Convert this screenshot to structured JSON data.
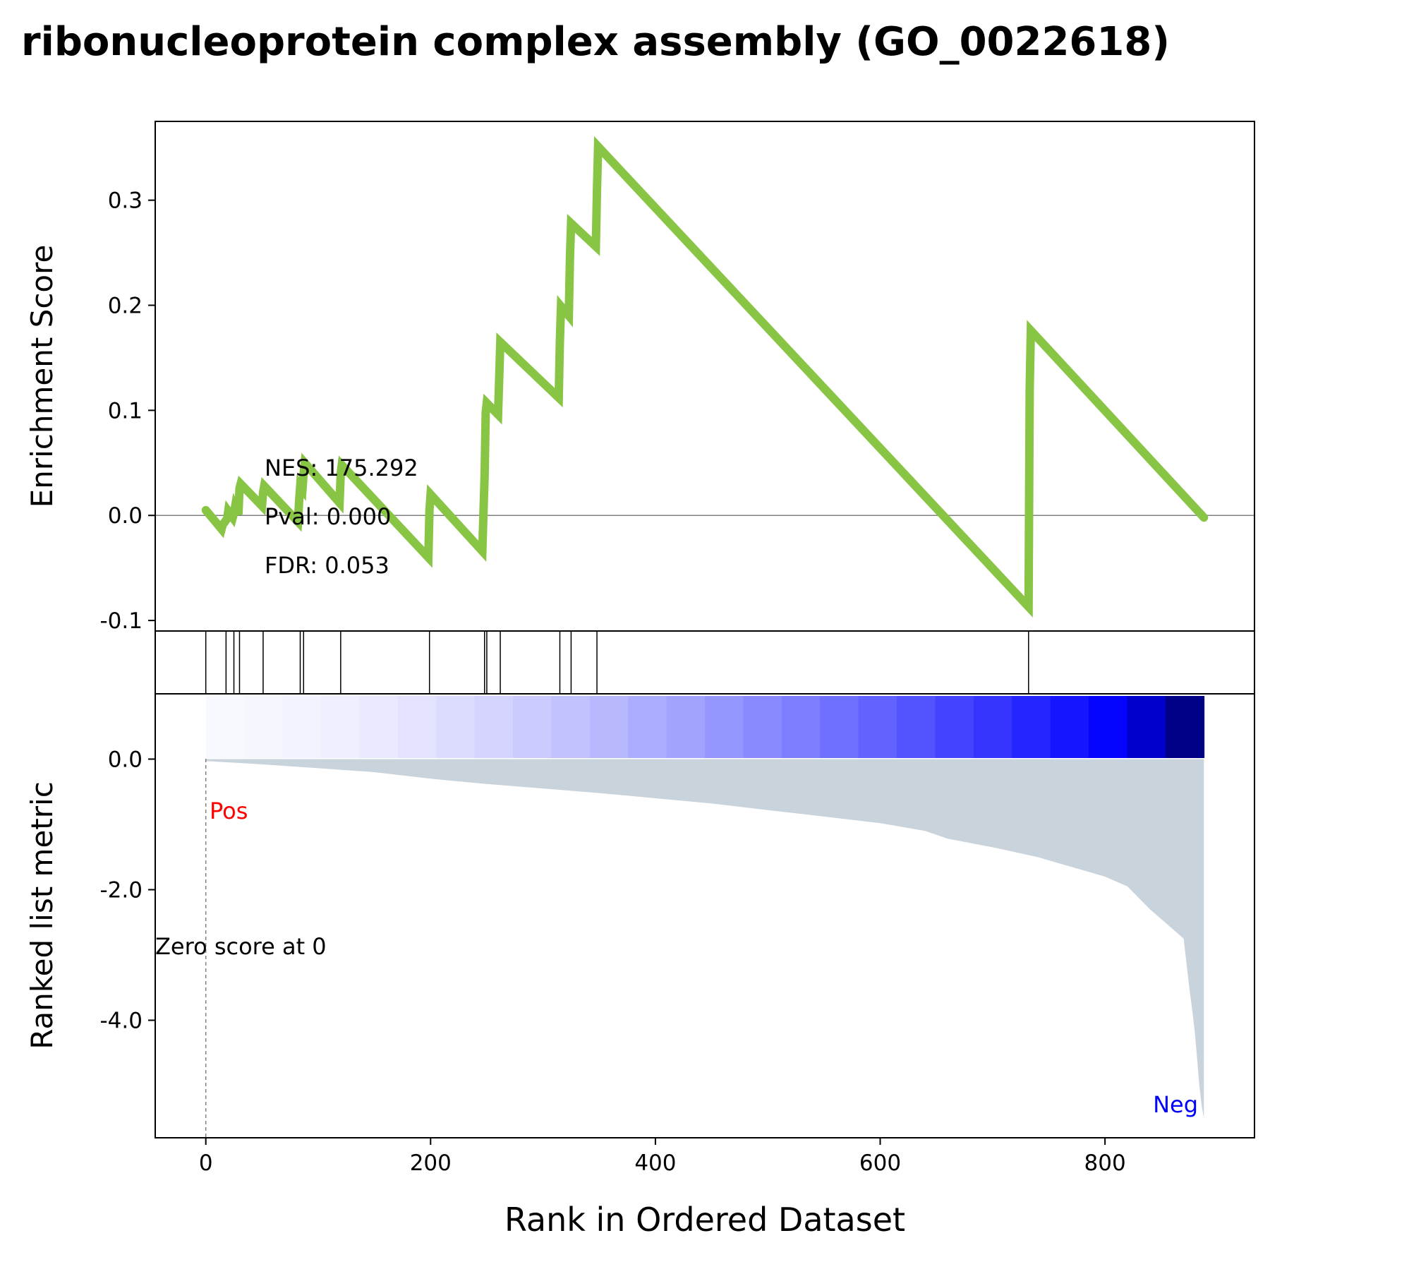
{
  "title": "ribonucleoprotein complex assembly (GO_0022618)",
  "colors": {
    "es_line": "#88c544",
    "metric_fill": "#c9d3dc",
    "pos_label": "#ff0000",
    "neg_label": "#0000ff",
    "zero_line": "#808080",
    "hit_line": "#000000"
  },
  "chart_data": [
    {
      "type": "line",
      "panel": "enrichment",
      "title": "ribonucleoprotein complex assembly (GO_0022618)",
      "ylabel": "Enrichment Score",
      "xlabel": "",
      "xlim": [
        -45,
        933
      ],
      "ylim": [
        -0.11,
        0.375
      ],
      "yticks": [
        "0.3",
        "0.2",
        "0.1",
        "0.0",
        "-0.1"
      ],
      "ytick_values": [
        0.3,
        0.2,
        0.1,
        0.0,
        -0.1
      ],
      "series": [
        {
          "x": [
            0,
            14,
            15,
            19,
            20,
            24,
            25,
            26,
            29,
            30,
            31,
            50,
            51,
            52,
            82,
            83,
            84,
            86,
            87,
            88,
            119,
            120,
            121,
            198,
            199,
            200,
            246,
            247,
            248,
            249,
            250,
            260,
            261,
            262,
            314,
            315,
            316,
            323,
            324,
            325,
            347,
            348,
            349,
            732,
            733,
            734,
            888
          ],
          "y": [
            0.005,
            -0.013,
            -0.009,
            -0.003,
            0.004,
            -0.002,
            0.002,
            0.008,
            0.001,
            0.026,
            0.03,
            0.009,
            0.022,
            0.028,
            -0.006,
            0.013,
            0.028,
            0.025,
            0.04,
            0.05,
            0.012,
            0.04,
            0.048,
            -0.04,
            0.005,
            0.02,
            -0.034,
            0.002,
            0.036,
            0.098,
            0.107,
            0.096,
            0.13,
            0.165,
            0.112,
            0.165,
            0.199,
            0.19,
            0.245,
            0.278,
            0.256,
            0.31,
            0.351,
            -0.087,
            0.12,
            0.176,
            -0.002
          ]
        }
      ],
      "annotations": [
        "NES: 175.292",
        "Pval: 0.000",
        "FDR: 0.053"
      ],
      "zero_line": true,
      "grid": false
    },
    {
      "type": "hits",
      "panel": "hits",
      "positions": [
        0,
        18,
        25,
        30,
        51,
        84,
        87,
        120,
        199,
        248,
        250,
        262,
        315,
        325,
        348,
        732
      ]
    },
    {
      "type": "area",
      "panel": "ranked_metric",
      "ylabel": "Ranked list metric",
      "xlabel": "Rank in Ordered Dataset",
      "xlim": [
        -45,
        933
      ],
      "ylim": [
        -5.8,
        1.0
      ],
      "yticks": [
        "0.0",
        "-2.0",
        "-4.0"
      ],
      "ytick_values": [
        0.0,
        -2.0,
        -4.0
      ],
      "xticks": [
        "0",
        "200",
        "400",
        "600",
        "800"
      ],
      "xtick_values": [
        0,
        200,
        400,
        600,
        800
      ],
      "series": [
        {
          "x": [
            0,
            50,
            100,
            150,
            200,
            250,
            300,
            350,
            400,
            450,
            500,
            550,
            600,
            640,
            660,
            700,
            740,
            780,
            800,
            820,
            840,
            850,
            860,
            870,
            875,
            878,
            880,
            882,
            884,
            886,
            888
          ],
          "y": [
            -0.03,
            -0.08,
            -0.14,
            -0.2,
            -0.3,
            -0.38,
            -0.45,
            -0.52,
            -0.6,
            -0.68,
            -0.78,
            -0.88,
            -0.98,
            -1.1,
            -1.22,
            -1.35,
            -1.5,
            -1.7,
            -1.8,
            -1.95,
            -2.3,
            -2.45,
            -2.6,
            -2.75,
            -3.5,
            -3.9,
            -4.2,
            -4.6,
            -5.0,
            -5.3,
            -5.5
          ]
        }
      ],
      "labels": {
        "pos": "Pos",
        "neg": "Neg",
        "zero": "Zero score at 0"
      },
      "zero_rank": 0,
      "grid": false
    }
  ]
}
